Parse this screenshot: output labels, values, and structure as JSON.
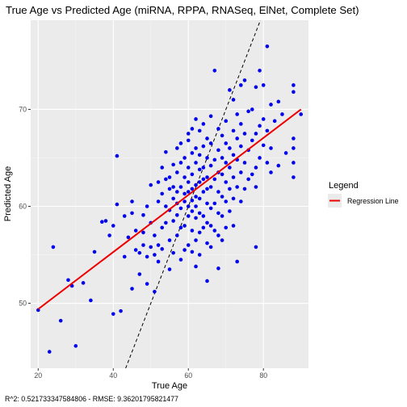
{
  "chart_data": {
    "type": "scatter",
    "title": "True Age vs Predicted Age (miRNA, RPPA, RNASeq, ElNet, Complete Set)",
    "xlabel": "True Age",
    "ylabel": "Predicted Age",
    "xlim": [
      18,
      92
    ],
    "ylim": [
      43.3,
      79.2
    ],
    "x_ticks": [
      20,
      40,
      60,
      80
    ],
    "y_ticks": [
      50,
      60,
      70
    ],
    "grid": true,
    "legend": {
      "title": "Legend",
      "position": "right",
      "entries": [
        {
          "label": "Regression Line",
          "color": "#ee0000"
        }
      ]
    },
    "colors": {
      "points": "#0000ee",
      "regression": "#ee0000",
      "identity": "#000000",
      "panel": "#ebebeb"
    },
    "regression_line": {
      "x": [
        20,
        90
      ],
      "y": [
        49.4,
        70.0
      ]
    },
    "identity_line": {
      "slope": 1,
      "intercept": 0,
      "style": "dashed"
    },
    "caption": "R^2: 0.521733347584806 - RMSE: 9.36201795821477",
    "points": [
      [
        20,
        49.3
      ],
      [
        23,
        45.0
      ],
      [
        24,
        55.8
      ],
      [
        26,
        48.2
      ],
      [
        28,
        52.4
      ],
      [
        29,
        51.8
      ],
      [
        30,
        45.6
      ],
      [
        32,
        52.1
      ],
      [
        34,
        50.3
      ],
      [
        35,
        55.3
      ],
      [
        37,
        58.4
      ],
      [
        38,
        58.5
      ],
      [
        39,
        57.0
      ],
      [
        40,
        48.9
      ],
      [
        40,
        58.0
      ],
      [
        41,
        65.2
      ],
      [
        41,
        60.2
      ],
      [
        42,
        49.2
      ],
      [
        43,
        54.8
      ],
      [
        43,
        59.0
      ],
      [
        44,
        56.8
      ],
      [
        45,
        51.5
      ],
      [
        45,
        59.3
      ],
      [
        45,
        60.5
      ],
      [
        46,
        55.5
      ],
      [
        46,
        57.5
      ],
      [
        47,
        53.0
      ],
      [
        47,
        55.2
      ],
      [
        48,
        56.0
      ],
      [
        48,
        57.3
      ],
      [
        48,
        59.1
      ],
      [
        49,
        54.8
      ],
      [
        49,
        52.0
      ],
      [
        49,
        60.0
      ],
      [
        50,
        58.3
      ],
      [
        50,
        62.2
      ],
      [
        50,
        55.8
      ],
      [
        51,
        51.2
      ],
      [
        51,
        55.0
      ],
      [
        51,
        57.0
      ],
      [
        52,
        54.3
      ],
      [
        52,
        56.0
      ],
      [
        52,
        60.5
      ],
      [
        52,
        62.5
      ],
      [
        53,
        55.6
      ],
      [
        53,
        57.8
      ],
      [
        53,
        61.3
      ],
      [
        53,
        64.0
      ],
      [
        54,
        58.3
      ],
      [
        54,
        60.0
      ],
      [
        54,
        62.8
      ],
      [
        54,
        65.6
      ],
      [
        55,
        53.5
      ],
      [
        55,
        56.5
      ],
      [
        55,
        59.6
      ],
      [
        55,
        61.8
      ],
      [
        55,
        63.0
      ],
      [
        56,
        55.2
      ],
      [
        56,
        58.5
      ],
      [
        56,
        60.8
      ],
      [
        56,
        62.0
      ],
      [
        56,
        64.3
      ],
      [
        57,
        57.0
      ],
      [
        57,
        59.1
      ],
      [
        57,
        60.3
      ],
      [
        57,
        61.5
      ],
      [
        57,
        63.5
      ],
      [
        57,
        66.0
      ],
      [
        58,
        54.5
      ],
      [
        58,
        57.8
      ],
      [
        58,
        59.8
      ],
      [
        58,
        62.0
      ],
      [
        58,
        64.5
      ],
      [
        58,
        66.5
      ],
      [
        59,
        55.5
      ],
      [
        59,
        58.0
      ],
      [
        59,
        60.5
      ],
      [
        59,
        61.3
      ],
      [
        59,
        63.0
      ],
      [
        59,
        65.0
      ],
      [
        60,
        56.0
      ],
      [
        60,
        59.0
      ],
      [
        60,
        60.0
      ],
      [
        60,
        61.5
      ],
      [
        60,
        62.5
      ],
      [
        60,
        64.0
      ],
      [
        60,
        66.8
      ],
      [
        60,
        67.5
      ],
      [
        61,
        55.3
      ],
      [
        61,
        57.5
      ],
      [
        61,
        59.5
      ],
      [
        61,
        60.6
      ],
      [
        61,
        61.8
      ],
      [
        61,
        63.3
      ],
      [
        61,
        65.5
      ],
      [
        61,
        68.0
      ],
      [
        62,
        53.8
      ],
      [
        62,
        56.5
      ],
      [
        62,
        58.8
      ],
      [
        62,
        60.0
      ],
      [
        62,
        61.0
      ],
      [
        62,
        62.2
      ],
      [
        62,
        64.5
      ],
      [
        62,
        66.0
      ],
      [
        62,
        69.0
      ],
      [
        63,
        55.0
      ],
      [
        63,
        57.3
      ],
      [
        63,
        59.3
      ],
      [
        63,
        60.8
      ],
      [
        63,
        62.5
      ],
      [
        63,
        63.8
      ],
      [
        63,
        65.3
      ],
      [
        63,
        67.8
      ],
      [
        64,
        57.8
      ],
      [
        64,
        59.0
      ],
      [
        64,
        61.5
      ],
      [
        64,
        62.8
      ],
      [
        64,
        64.0
      ],
      [
        64,
        66.2
      ],
      [
        64,
        68.5
      ],
      [
        65,
        52.3
      ],
      [
        65,
        56.2
      ],
      [
        65,
        58.3
      ],
      [
        65,
        60.3
      ],
      [
        65,
        61.8
      ],
      [
        65,
        63.0
      ],
      [
        65,
        65.0
      ],
      [
        65,
        67.0
      ],
      [
        66,
        55.8
      ],
      [
        66,
        58.0
      ],
      [
        66,
        59.8
      ],
      [
        66,
        62.0
      ],
      [
        66,
        64.2
      ],
      [
        66,
        66.5
      ],
      [
        66,
        69.3
      ],
      [
        67,
        57.5
      ],
      [
        67,
        60.3
      ],
      [
        67,
        62.8
      ],
      [
        67,
        64.8
      ],
      [
        67,
        74.0
      ],
      [
        68,
        53.6
      ],
      [
        68,
        57.0
      ],
      [
        68,
        59.3
      ],
      [
        68,
        61.5
      ],
      [
        68,
        63.5
      ],
      [
        68,
        65.8
      ],
      [
        68,
        68.0
      ],
      [
        69,
        56.5
      ],
      [
        69,
        59.0
      ],
      [
        69,
        61.0
      ],
      [
        69,
        63.3
      ],
      [
        69,
        65.0
      ],
      [
        69,
        67.3
      ],
      [
        70,
        57.8
      ],
      [
        70,
        60.5
      ],
      [
        70,
        62.5
      ],
      [
        70,
        64.5
      ],
      [
        70,
        66.5
      ],
      [
        70,
        68.8
      ],
      [
        71,
        59.5
      ],
      [
        71,
        61.8
      ],
      [
        71,
        64.0
      ],
      [
        71,
        66.0
      ],
      [
        71,
        72.0
      ],
      [
        72,
        58.0
      ],
      [
        72,
        60.8
      ],
      [
        72,
        63.0
      ],
      [
        72,
        65.3
      ],
      [
        72,
        67.8
      ],
      [
        72,
        71.0
      ],
      [
        73,
        54.3
      ],
      [
        73,
        62.0
      ],
      [
        73,
        64.8
      ],
      [
        73,
        67.0
      ],
      [
        73,
        69.5
      ],
      [
        74,
        60.5
      ],
      [
        74,
        63.5
      ],
      [
        74,
        66.2
      ],
      [
        74,
        68.5
      ],
      [
        74,
        72.5
      ],
      [
        75,
        61.8
      ],
      [
        75,
        64.5
      ],
      [
        75,
        67.5
      ],
      [
        75,
        73.0
      ],
      [
        76,
        62.8
      ],
      [
        76,
        65.8
      ],
      [
        76,
        69.8
      ],
      [
        77,
        63.3
      ],
      [
        77,
        66.8
      ],
      [
        77,
        70.0
      ],
      [
        78,
        55.8
      ],
      [
        78,
        62.0
      ],
      [
        78,
        64.0
      ],
      [
        78,
        67.5
      ],
      [
        78,
        72.3
      ],
      [
        79,
        65.0
      ],
      [
        79,
        68.3
      ],
      [
        79,
        74.0
      ],
      [
        80,
        66.3
      ],
      [
        80,
        69.0
      ],
      [
        80,
        72.5
      ],
      [
        81,
        64.5
      ],
      [
        81,
        67.8
      ],
      [
        81,
        76.5
      ],
      [
        82,
        63.5
      ],
      [
        82,
        66.0
      ],
      [
        82,
        70.5
      ],
      [
        83,
        68.8
      ],
      [
        84,
        64.2
      ],
      [
        84,
        70.8
      ],
      [
        85,
        69.5
      ],
      [
        86,
        65.5
      ],
      [
        88,
        63.0
      ],
      [
        88,
        64.5
      ],
      [
        88,
        66.0
      ],
      [
        88,
        67.0
      ],
      [
        88,
        71.8
      ],
      [
        88,
        72.5
      ],
      [
        90,
        69.5
      ]
    ]
  }
}
